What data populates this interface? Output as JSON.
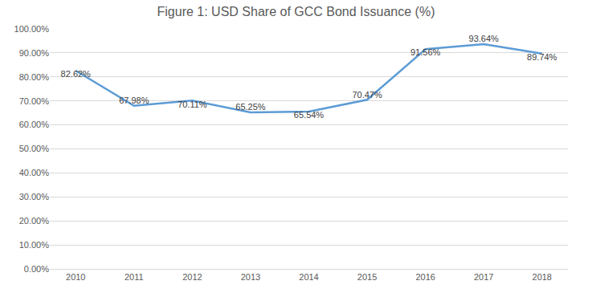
{
  "chart_data": {
    "type": "line",
    "title": "Figure 1: USD Share of GCC Bond Issuance (%)",
    "categories": [
      "2010",
      "2011",
      "2012",
      "2013",
      "2014",
      "2015",
      "2016",
      "2017",
      "2018"
    ],
    "values": [
      82.62,
      67.98,
      70.11,
      65.25,
      65.54,
      70.47,
      91.56,
      93.64,
      89.74
    ],
    "value_labels": [
      "82.62%",
      "67.98%",
      "70.11%",
      "65.25%",
      "65.54%",
      "70.47%",
      "91.56%",
      "93.64%",
      "89.74%"
    ],
    "color": "#5b9bd5",
    "ylim": [
      0,
      100
    ],
    "yticks": [
      {
        "value": 0,
        "label": "0.00%"
      },
      {
        "value": 10,
        "label": "10.00%"
      },
      {
        "value": 20,
        "label": "20.00%"
      },
      {
        "value": 30,
        "label": "30.00%"
      },
      {
        "value": 40,
        "label": "40.00%"
      },
      {
        "value": 50,
        "label": "50.00%"
      },
      {
        "value": 60,
        "label": "60.00%"
      },
      {
        "value": 70,
        "label": "70.00%"
      },
      {
        "value": 80,
        "label": "80.00%"
      },
      {
        "value": 90,
        "label": "90.00%"
      },
      {
        "value": 100,
        "label": "100.00%"
      }
    ],
    "grid": true,
    "data_labels": true
  }
}
